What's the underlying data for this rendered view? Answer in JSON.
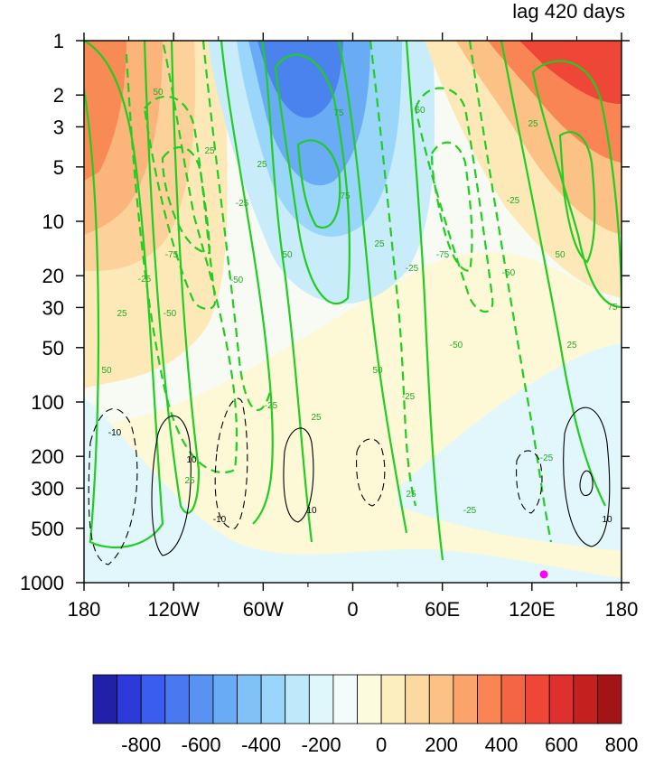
{
  "chart_data": {
    "type": "heatmap",
    "title": "lag 420 days",
    "x_ticks": [
      "180",
      "120W",
      "60W",
      "0",
      "60E",
      "120E",
      "180"
    ],
    "x_values": [
      -180,
      -120,
      -60,
      0,
      60,
      120,
      180
    ],
    "xlim": [
      -180,
      180
    ],
    "y_scale": "log",
    "y_reversed": true,
    "y_ticks": [
      "1",
      "2",
      "3",
      "5",
      "10",
      "20",
      "30",
      "50",
      "100",
      "200",
      "300",
      "500",
      "1000"
    ],
    "y_values": [
      1,
      2,
      3,
      5,
      10,
      20,
      30,
      50,
      100,
      200,
      300,
      500,
      1000
    ],
    "ylim": [
      1000,
      1
    ],
    "colorbar": {
      "tick_labels": [
        "-800",
        "-600",
        "-400",
        "-200",
        "0",
        "200",
        "400",
        "600",
        "800"
      ],
      "levels": [
        -900,
        -800,
        -700,
        -600,
        -500,
        -400,
        -300,
        -200,
        -100,
        0,
        100,
        200,
        300,
        400,
        500,
        600,
        700,
        800,
        900
      ],
      "colors": [
        "#2020a8",
        "#2c3ad8",
        "#3a5cef",
        "#4a78f0",
        "#5a92f2",
        "#6aabf5",
        "#80c2f8",
        "#9ad6fa",
        "#bde9fb",
        "#dff7fb",
        "#f3fbfb",
        "#fdfbdd",
        "#fdeec0",
        "#fdd9a2",
        "#fcc185",
        "#fba36a",
        "#f88553",
        "#f46643",
        "#ee4737",
        "#de302c",
        "#c4201f",
        "#a31416"
      ]
    },
    "contour_line_colors": {
      "green": "#22cc22",
      "black": "#000000"
    },
    "green_contour_labels": [
      "25",
      "50",
      "75",
      "-25",
      "-50",
      "-75"
    ],
    "black_contour_labels": [
      "10",
      "-10"
    ],
    "marker": {
      "lon": 128,
      "pressure": 900,
      "color": "#ff00ff"
    }
  }
}
